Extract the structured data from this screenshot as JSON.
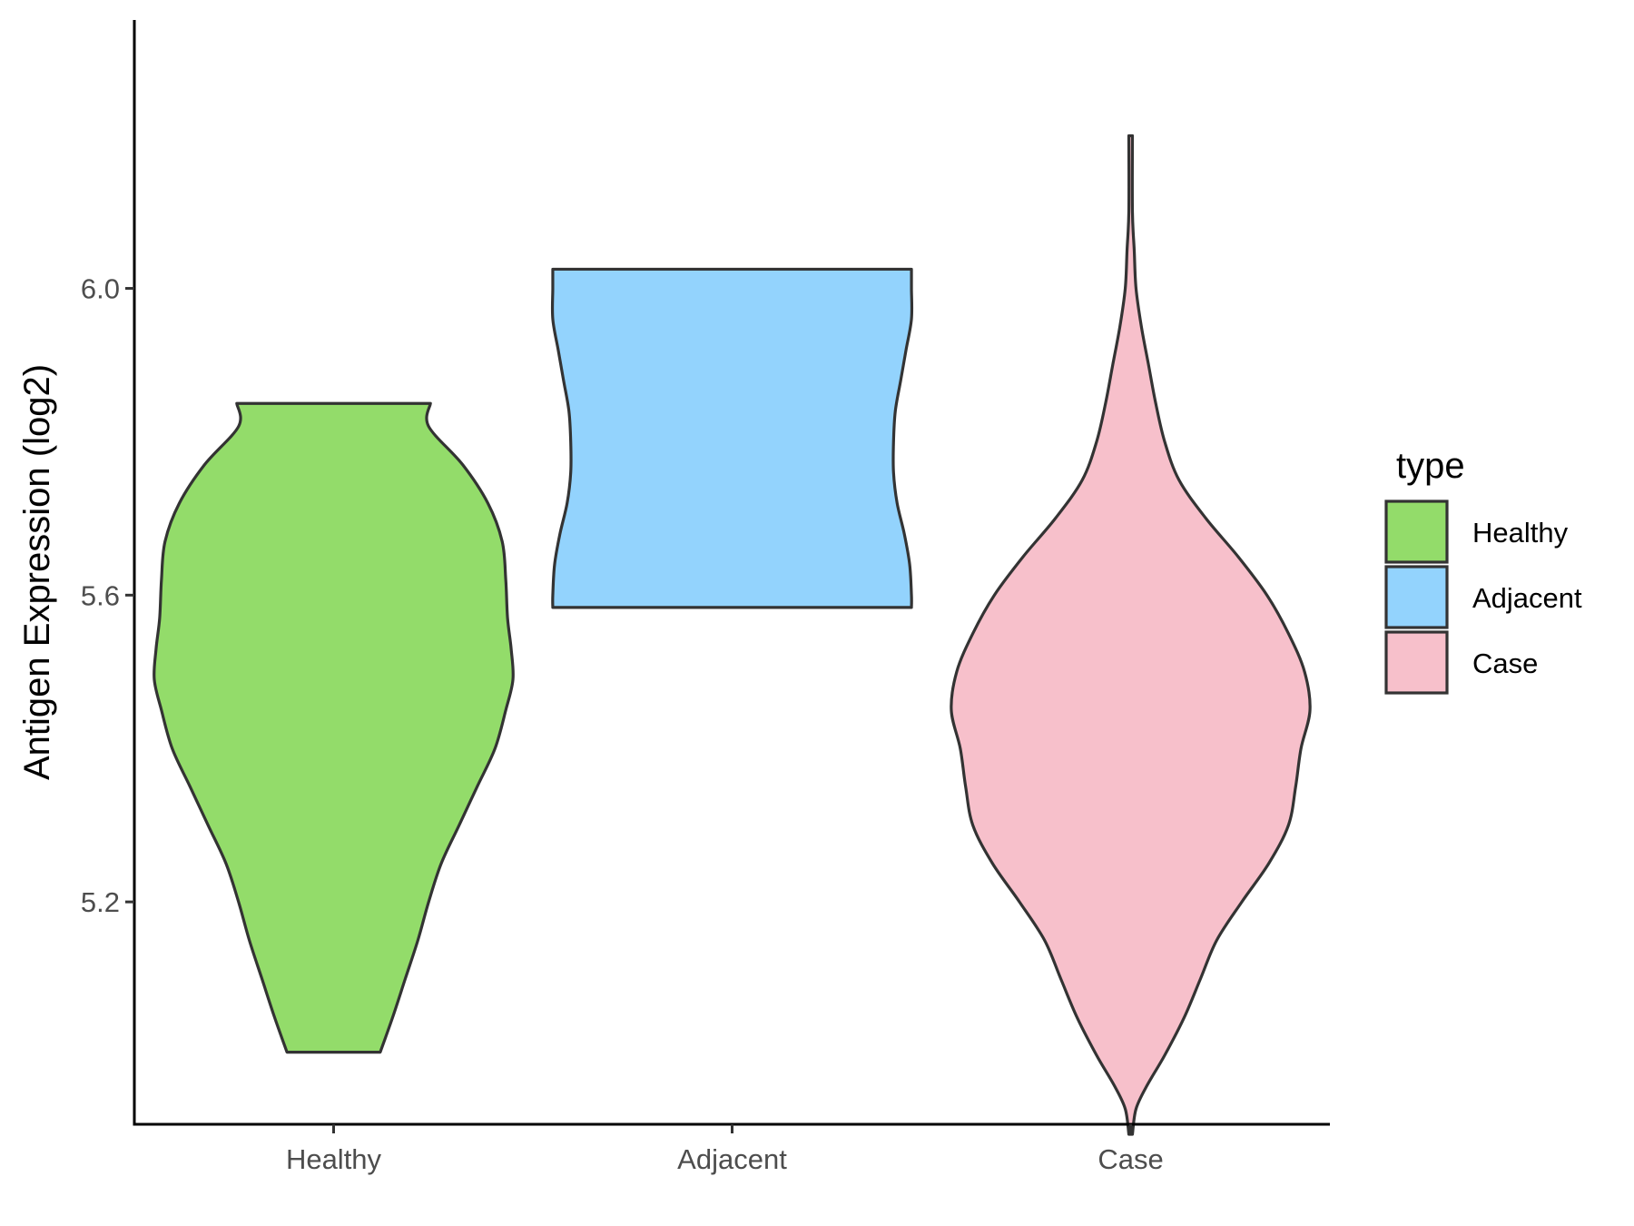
{
  "chart_data": {
    "type": "violin",
    "title": "",
    "xlabel": "",
    "ylabel": "Antigen Expression (log2)",
    "ylim": [
      4.91,
      6.35
    ],
    "yticks": [
      5.2,
      5.6,
      6.0
    ],
    "ytick_labels": [
      "5.2",
      "5.6",
      "6.0"
    ],
    "categories": [
      "Healthy",
      "Adjacent",
      "Case"
    ],
    "colors": {
      "Healthy": "#93dc6a",
      "Adjacent": "#93d3fd",
      "Case": "#f7c0cb",
      "outline": "#333333"
    },
    "legend": {
      "title": "type",
      "position": "right",
      "entries": [
        "Healthy",
        "Adjacent",
        "Case"
      ]
    },
    "grid": false,
    "series": [
      {
        "category": "Healthy",
        "min": 5.004,
        "max": 5.85,
        "density": [
          [
            5.004,
            0.26
          ],
          [
            5.05,
            0.33
          ],
          [
            5.1,
            0.4
          ],
          [
            5.15,
            0.47
          ],
          [
            5.2,
            0.53
          ],
          [
            5.25,
            0.6
          ],
          [
            5.3,
            0.7
          ],
          [
            5.35,
            0.8
          ],
          [
            5.4,
            0.9
          ],
          [
            5.45,
            0.96
          ],
          [
            5.49,
            1.0
          ],
          [
            5.53,
            0.99
          ],
          [
            5.57,
            0.97
          ],
          [
            5.62,
            0.96
          ],
          [
            5.67,
            0.94
          ],
          [
            5.72,
            0.86
          ],
          [
            5.77,
            0.72
          ],
          [
            5.82,
            0.53
          ],
          [
            5.85,
            0.54
          ]
        ]
      },
      {
        "category": "Adjacent",
        "min": 5.584,
        "max": 6.025,
        "density": [
          [
            5.584,
            1.0
          ],
          [
            5.6,
            1.0
          ],
          [
            5.64,
            0.99
          ],
          [
            5.68,
            0.96
          ],
          [
            5.72,
            0.92
          ],
          [
            5.76,
            0.9
          ],
          [
            5.8,
            0.9
          ],
          [
            5.84,
            0.91
          ],
          [
            5.88,
            0.94
          ],
          [
            5.92,
            0.97
          ],
          [
            5.96,
            1.0
          ],
          [
            6.0,
            1.0
          ],
          [
            6.025,
            1.0
          ]
        ]
      },
      {
        "category": "Case",
        "min": 4.897,
        "max": 6.199,
        "density": [
          [
            4.897,
            0.01
          ],
          [
            4.93,
            0.03
          ],
          [
            4.96,
            0.09
          ],
          [
            5.0,
            0.19
          ],
          [
            5.05,
            0.3
          ],
          [
            5.1,
            0.39
          ],
          [
            5.15,
            0.48
          ],
          [
            5.2,
            0.62
          ],
          [
            5.25,
            0.77
          ],
          [
            5.3,
            0.88
          ],
          [
            5.35,
            0.92
          ],
          [
            5.4,
            0.95
          ],
          [
            5.45,
            1.0
          ],
          [
            5.5,
            0.97
          ],
          [
            5.55,
            0.88
          ],
          [
            5.6,
            0.76
          ],
          [
            5.65,
            0.6
          ],
          [
            5.7,
            0.42
          ],
          [
            5.75,
            0.27
          ],
          [
            5.8,
            0.19
          ],
          [
            5.85,
            0.14
          ],
          [
            5.9,
            0.1
          ],
          [
            5.95,
            0.06
          ],
          [
            6.0,
            0.03
          ],
          [
            6.05,
            0.02
          ],
          [
            6.1,
            0.01
          ],
          [
            6.199,
            0.01
          ]
        ]
      }
    ]
  }
}
